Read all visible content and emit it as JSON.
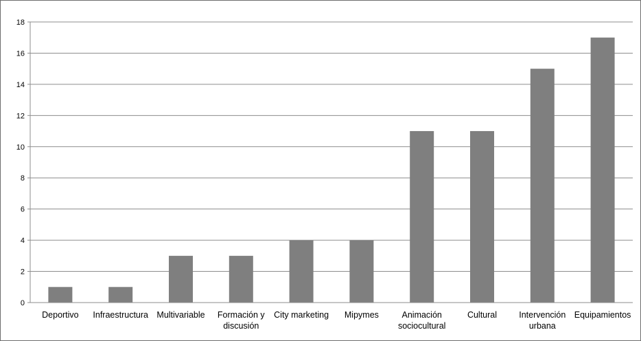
{
  "chart_data": {
    "type": "bar",
    "categories": [
      "Deportivo",
      "Infraestructura",
      "Multivariable",
      "Formación y discusión",
      "City marketing",
      "Mipymes",
      "Animación sociocultural",
      "Cultural",
      "Intervención urbana",
      "Equipamientos"
    ],
    "category_lines": [
      [
        "Deportivo"
      ],
      [
        "Infraestructura"
      ],
      [
        "Multivariable"
      ],
      [
        "Formación y",
        "discusión"
      ],
      [
        "City marketing"
      ],
      [
        "Mipymes"
      ],
      [
        "Animación",
        "sociocultural"
      ],
      [
        "Cultural"
      ],
      [
        "Intervención",
        "urbana"
      ],
      [
        "Equipamientos"
      ]
    ],
    "values": [
      1,
      1,
      3,
      3,
      4,
      4,
      11,
      11,
      15,
      17
    ],
    "ylim": [
      0,
      18
    ],
    "yticks": [
      0,
      2,
      4,
      6,
      8,
      10,
      12,
      14,
      16,
      18
    ],
    "grid": true,
    "legend": "none",
    "bar_color": "#7f7f7f",
    "grid_color": "#8c8c8c"
  }
}
